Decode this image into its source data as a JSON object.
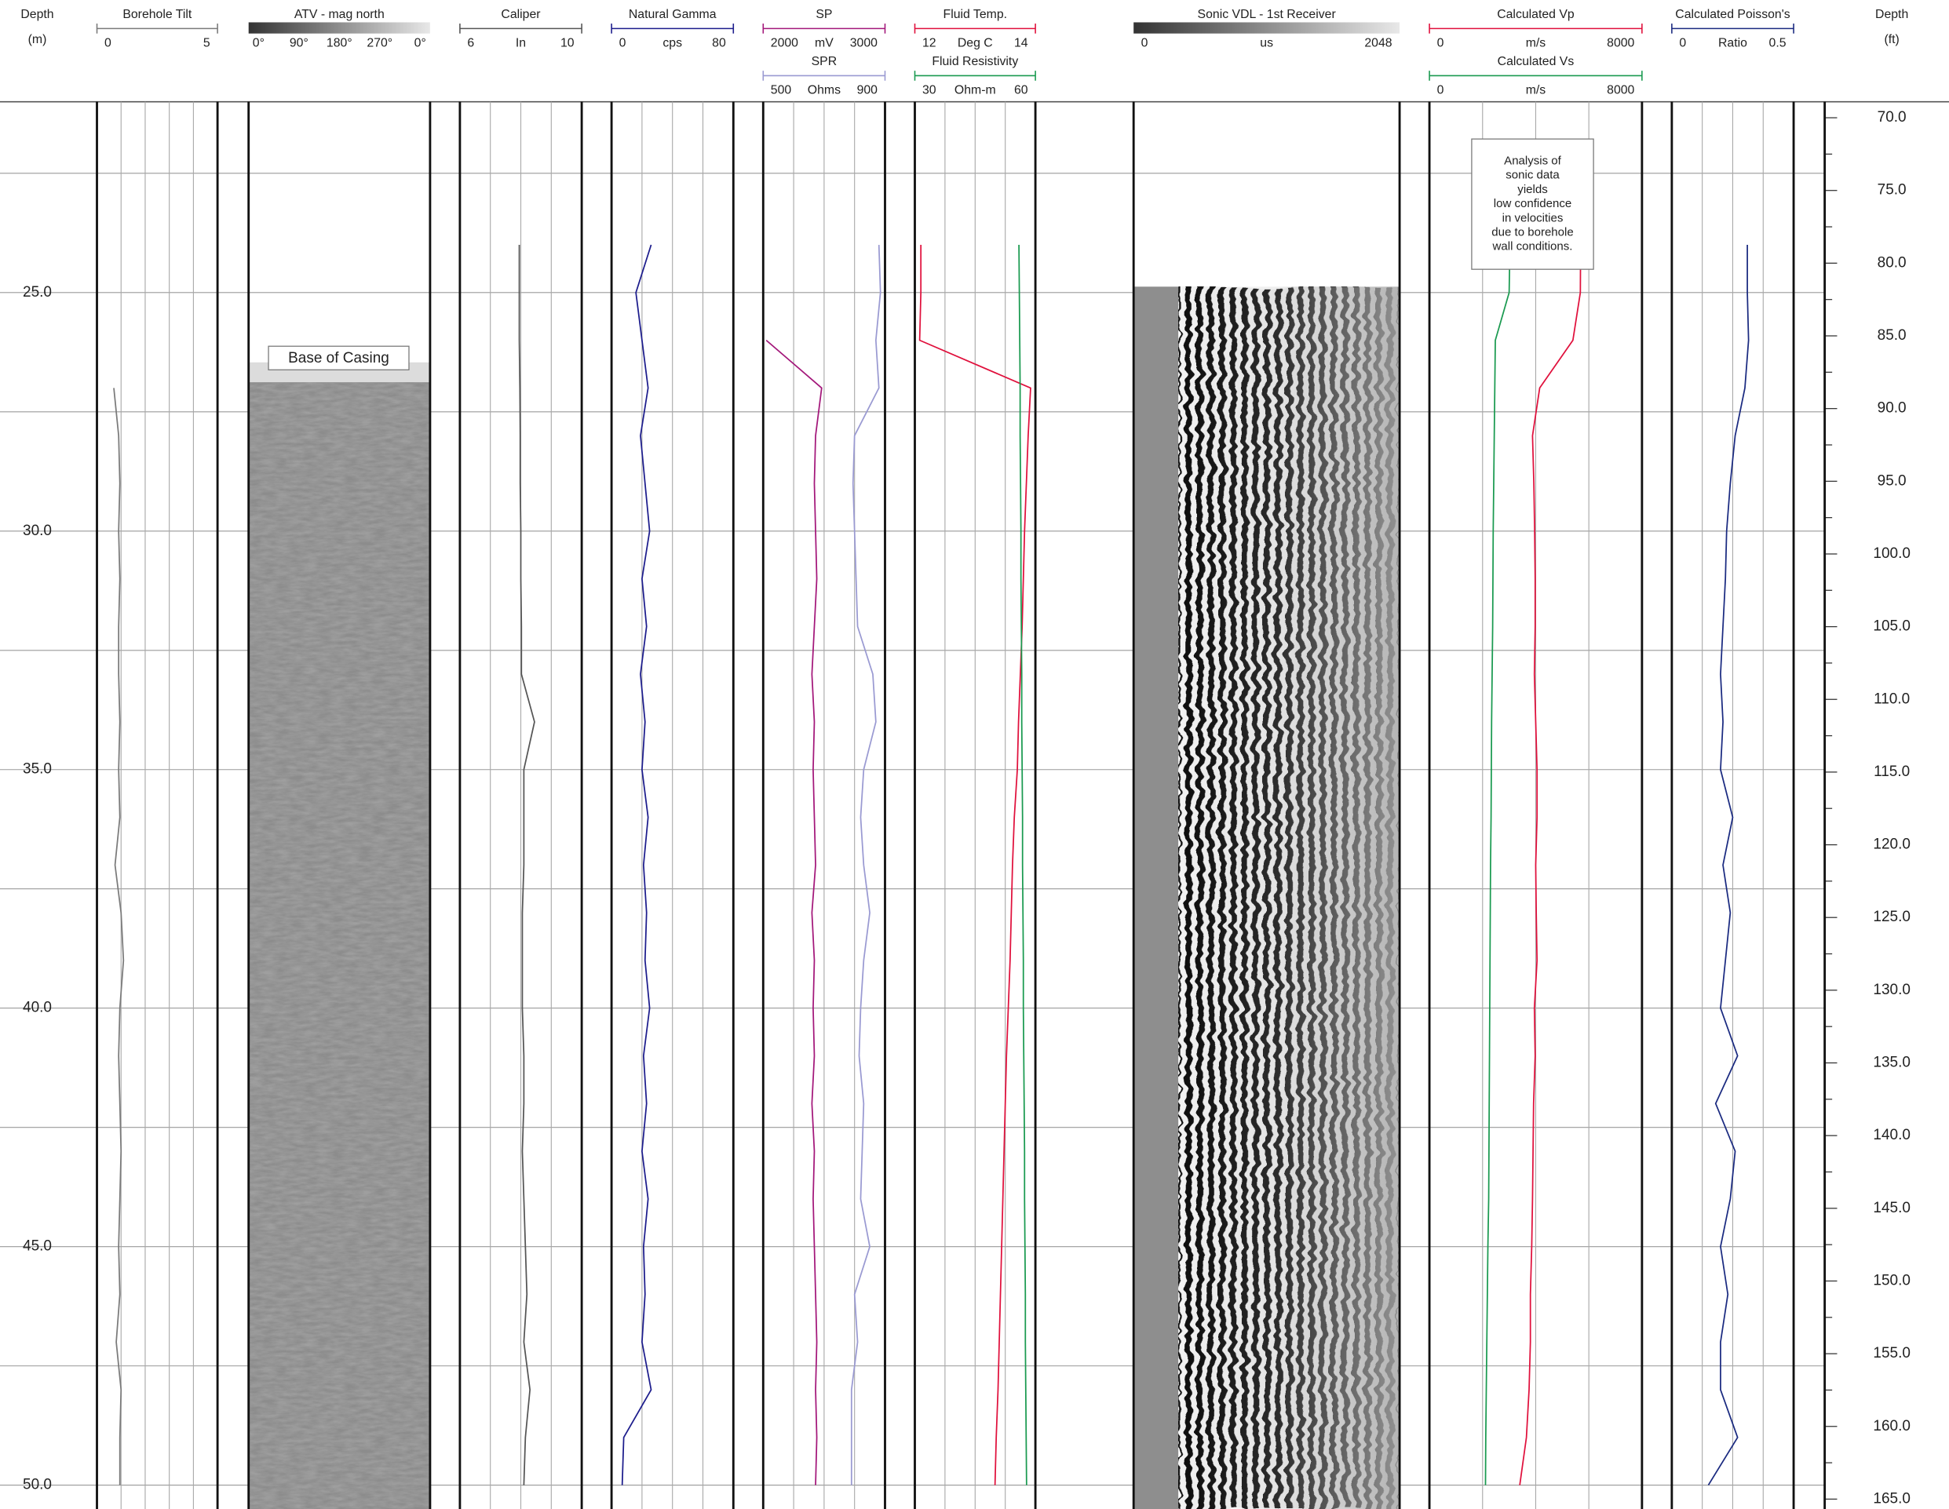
{
  "chart_data": {
    "type": "well-log",
    "ylabel": "Depth",
    "yunit": "(m)",
    "ylim": [
      21,
      50.5
    ],
    "yticks": [
      {
        "value": 25,
        "label": "25.0"
      },
      {
        "value": 30,
        "label": "30.0"
      },
      {
        "value": 35,
        "label": "35.0"
      },
      {
        "value": 40,
        "label": "40.0"
      },
      {
        "value": 45,
        "label": "45.0"
      },
      {
        "value": 50,
        "label": "50.0"
      }
    ],
    "ygrid": [
      22.5,
      27.5,
      32.5,
      37.5,
      42.5,
      47.5
    ],
    "y2label": "Depth",
    "y2unit": "(ft)",
    "y2lim": [
      68.9,
      165.68
    ],
    "y2ticks": [
      {
        "value": 70,
        "label": "70.0"
      },
      {
        "value": 75,
        "label": "75.0"
      },
      {
        "value": 80,
        "label": "80.0"
      },
      {
        "value": 85,
        "label": "85.0"
      },
      {
        "value": 90,
        "label": "90.0"
      },
      {
        "value": 95,
        "label": "95.0"
      },
      {
        "value": 100,
        "label": "100.0"
      },
      {
        "value": 105,
        "label": "105.0"
      },
      {
        "value": 110,
        "label": "110.0"
      },
      {
        "value": 115,
        "label": "115.0"
      },
      {
        "value": 120,
        "label": "120.0"
      },
      {
        "value": 125,
        "label": "125.0"
      },
      {
        "value": 130,
        "label": "130.0"
      },
      {
        "value": 135,
        "label": "135.0"
      },
      {
        "value": 140,
        "label": "140.0"
      },
      {
        "value": 145,
        "label": "145.0"
      },
      {
        "value": 150,
        "label": "150.0"
      },
      {
        "value": 155,
        "label": "155.0"
      },
      {
        "value": 160,
        "label": "160.0"
      },
      {
        "value": 165,
        "label": "165.0"
      }
    ],
    "y2minorticks": [
      72.5,
      77.5,
      82.5,
      87.5,
      92.5,
      97.5,
      102.5,
      107.5,
      112.5,
      117.5,
      122.5,
      127.5,
      132.5,
      137.5,
      142.5,
      147.5,
      152.5,
      157.5,
      162.5
    ],
    "depths": [
      22,
      23,
      24,
      25,
      26,
      27,
      28,
      29,
      30,
      31,
      32,
      33,
      34,
      35,
      36,
      37,
      38,
      39,
      40,
      41,
      42,
      43,
      44,
      45,
      46,
      47,
      48,
      49,
      50
    ],
    "tracks": [
      {
        "type": "line",
        "series": [
          {
            "name": "Borehole Tilt",
            "color": "#7a7a7a",
            "xlim": [
              0,
              5
            ],
            "values": [
              null,
              null,
              null,
              null,
              null,
              0.7,
              0.9,
              0.95,
              0.9,
              0.95,
              0.9,
              0.9,
              0.95,
              0.9,
              0.95,
              0.75,
              1.0,
              1.1,
              0.95,
              0.9,
              0.95,
              1.0,
              0.95,
              0.9,
              0.95,
              0.8,
              1.0,
              0.95,
              0.95
            ]
          }
        ]
      },
      {
        "type": "image",
        "name": "ATV - mag north",
        "scale_labels": [
          "0°",
          "90°",
          "180°",
          "270°",
          "0°"
        ]
      },
      {
        "type": "line",
        "series": [
          {
            "name": "Caliper",
            "unit": "In",
            "color": "#555555",
            "xlim": [
              6,
              10
            ],
            "values": [
              null,
              null,
              7.95,
              7.95,
              7.95,
              7.97,
              7.98,
              7.98,
              8.0,
              8.0,
              8.02,
              8.02,
              8.45,
              8.1,
              8.1,
              8.1,
              8.05,
              8.05,
              8.05,
              8.1,
              8.1,
              8.05,
              8.1,
              8.15,
              8.2,
              8.1,
              8.3,
              8.15,
              8.1
            ]
          }
        ]
      },
      {
        "type": "line",
        "series": [
          {
            "name": "Natural Gamma",
            "unit": "cps",
            "color": "#1c1c8c",
            "xlim": [
              0,
              80
            ],
            "values": [
              null,
              null,
              26,
              16,
              20,
              24,
              19,
              22,
              25,
              20,
              23,
              19,
              22,
              20,
              24,
              21,
              23,
              22,
              25,
              21,
              23,
              20,
              24,
              21,
              22,
              20,
              26,
              8,
              7
            ]
          }
        ]
      },
      {
        "type": "line",
        "series": [
          {
            "name": "SP",
            "unit": "mV",
            "color": "#a3177a",
            "xlim": [
              2000,
              3000
            ],
            "values": [
              null,
              null,
              null,
              null,
              2025,
              2480,
              2430,
              2420,
              2430,
              2440,
              2420,
              2400,
              2420,
              2410,
              2420,
              2430,
              2400,
              2420,
              2410,
              2420,
              2400,
              2420,
              2410,
              2420,
              2430,
              2440,
              2430,
              2440,
              2430
            ]
          },
          {
            "name": "SPR",
            "unit": "Ohms",
            "color": "#9a9ad2",
            "xlim": [
              500,
              900
            ],
            "values": [
              null,
              null,
              880,
              885,
              870,
              880,
              800,
              795,
              800,
              805,
              810,
              860,
              870,
              830,
              820,
              830,
              850,
              830,
              820,
              815,
              830,
              825,
              820,
              850,
              800,
              810,
              790,
              790,
              790
            ]
          }
        ]
      },
      {
        "type": "line",
        "series": [
          {
            "name": "Fluid Temp.",
            "unit": "Deg C",
            "color": "#e0103c",
            "xlim": [
              12,
              14
            ],
            "values": [
              null,
              null,
              12.1,
              12.1,
              12.08,
              13.92,
              13.88,
              13.85,
              13.82,
              13.8,
              13.78,
              13.75,
              13.72,
              13.7,
              13.65,
              13.62,
              13.6,
              13.58,
              13.55,
              13.52,
              13.5,
              13.48,
              13.46,
              13.44,
              13.42,
              13.4,
              13.38,
              13.35,
              13.33
            ]
          },
          {
            "name": "Fluid Resistivity",
            "unit": "Ohm-m",
            "color": "#1a9a50",
            "xlim": [
              30,
              60
            ],
            "values": [
              null,
              null,
              55.9,
              56.0,
              56.1,
              56.2,
              56.2,
              56.3,
              56.4,
              56.4,
              56.5,
              56.6,
              56.6,
              56.7,
              56.8,
              56.8,
              56.9,
              57.0,
              57.0,
              57.1,
              57.2,
              57.3,
              57.3,
              57.4,
              57.5,
              57.5,
              57.6,
              57.7,
              57.8
            ]
          }
        ]
      },
      {
        "type": "image",
        "name": "Sonic VDL - 1st Receiver",
        "unit": "us",
        "xlim": [
          0,
          2048
        ]
      },
      {
        "type": "line",
        "series": [
          {
            "name": "Calculated Vp",
            "unit": "m/s",
            "color": "#e0103c",
            "xlim": [
              0,
              8000
            ],
            "values": [
              5700,
              5700,
              5690,
              5680,
              5400,
              4150,
              3880,
              3930,
              3960,
              3980,
              3980,
              3950,
              4000,
              4050,
              4050,
              4000,
              4020,
              4050,
              3950,
              3980,
              3920,
              3900,
              3880,
              3850,
              3800,
              3800,
              3750,
              3650,
              3400
            ]
          },
          {
            "name": "Calculated Vs",
            "unit": "m/s",
            "color": "#1a9a50",
            "xlim": [
              0,
              8000
            ],
            "values": [
              3040,
              3030,
              3030,
              3000,
              2480,
              2460,
              2440,
              2420,
              2400,
              2390,
              2380,
              2360,
              2340,
              2330,
              2320,
              2300,
              2290,
              2280,
              2270,
              2260,
              2250,
              2240,
              2230,
              2200,
              2180,
              2160,
              2140,
              2120,
              2110
            ]
          }
        ]
      },
      {
        "type": "line",
        "series": [
          {
            "name": "Calculated Poisson's",
            "unit": "Ratio",
            "color": "#1a2a80",
            "xlim": [
              0,
              0.5
            ],
            "values": [
              null,
              null,
              0.31,
              0.31,
              0.315,
              0.3,
              0.26,
              0.24,
              0.225,
              0.22,
              0.21,
              0.2,
              0.21,
              0.2,
              0.25,
              0.21,
              0.24,
              0.22,
              0.2,
              0.27,
              0.18,
              0.26,
              0.24,
              0.2,
              0.23,
              0.2,
              0.2,
              0.27,
              0.15
            ]
          }
        ]
      }
    ],
    "annotations": {
      "casing": "Base of Casing",
      "sonic": [
        "Analysis of",
        "sonic data",
        "yields",
        "low confidence",
        "in velocities",
        "due to borehole",
        "wall conditions."
      ]
    }
  }
}
